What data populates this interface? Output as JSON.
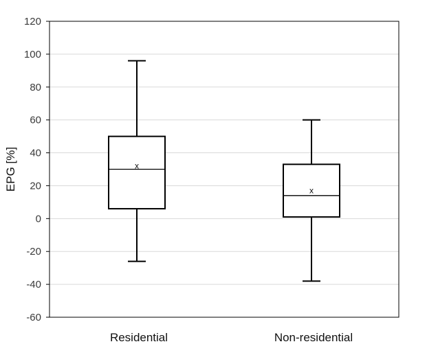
{
  "chart_data": {
    "type": "boxplot",
    "title": "",
    "xlabel": "",
    "ylabel": "EPG [%]",
    "ylim": [
      -60,
      120
    ],
    "y_ticks": [
      -60,
      -40,
      -20,
      0,
      20,
      40,
      60,
      80,
      100,
      120
    ],
    "grid": true,
    "legend": "none",
    "categories": [
      "Residential",
      "Non-residential"
    ],
    "boxes": [
      {
        "category": "Residential",
        "min": -26,
        "q1": 6,
        "median": 30,
        "q3": 50,
        "max": 96,
        "mean": 32,
        "mean_marker": "x"
      },
      {
        "category": "Non-residential",
        "min": -38,
        "q1": 1,
        "median": 14,
        "q3": 33,
        "max": 60,
        "mean": 17,
        "mean_marker": "x"
      }
    ],
    "colors": {
      "box_stroke": "#000000",
      "box_fill": "#ffffff",
      "grid": "#d9d9d9",
      "axis": "#000000"
    }
  }
}
